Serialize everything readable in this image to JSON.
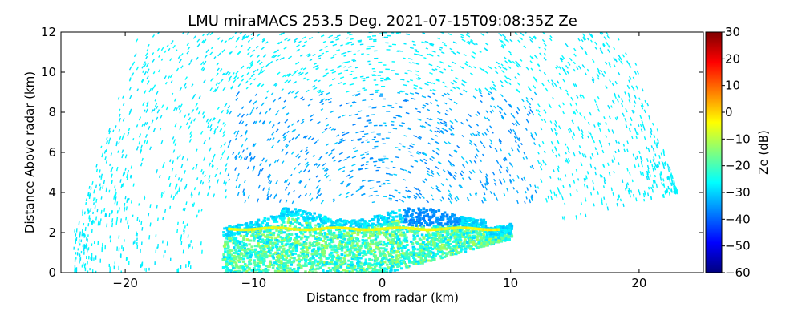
{
  "chart_data": {
    "type": "heatmap",
    "title": "LMU miraMACS 253.5 Deg. 2021-07-15T09:08:35Z  Ze",
    "xlabel": "Distance from radar (km)",
    "ylabel": "Distance Above radar  (km)",
    "xlim": [
      -25,
      25
    ],
    "ylim": [
      0,
      12
    ],
    "x_ticks": [
      -20,
      -10,
      0,
      10,
      20
    ],
    "y_ticks": [
      0,
      2,
      4,
      6,
      8,
      10,
      12
    ],
    "colorbar": {
      "label": "Ze (dB)",
      "range": [
        -60,
        30
      ],
      "ticks": [
        30,
        20,
        10,
        0,
        -10,
        -20,
        -30,
        -40,
        -50,
        -60
      ],
      "colormap": "jet"
    },
    "regions": [
      {
        "name": "dense cloud layer",
        "x_range_km": [
          -12.5,
          10
        ],
        "height_range_km": [
          0,
          3.5
        ],
        "ze_dB_range": [
          -30,
          -10
        ]
      },
      {
        "name": "bright band",
        "x_range_km": [
          -12,
          9
        ],
        "height_km": 2.2,
        "ze_dB": -5
      },
      {
        "name": "sparse upper echoes",
        "x_range_km": [
          -24,
          24
        ],
        "height_range_km": [
          3.5,
          12
        ],
        "ze_dB_range": [
          -40,
          -28
        ]
      }
    ],
    "grid": false
  },
  "colors": {
    "jet": [
      "#00007f",
      "#0000ff",
      "#007fff",
      "#00ffff",
      "#7fff7f",
      "#ffff00",
      "#ff7f00",
      "#ff0000",
      "#7f0000"
    ]
  }
}
